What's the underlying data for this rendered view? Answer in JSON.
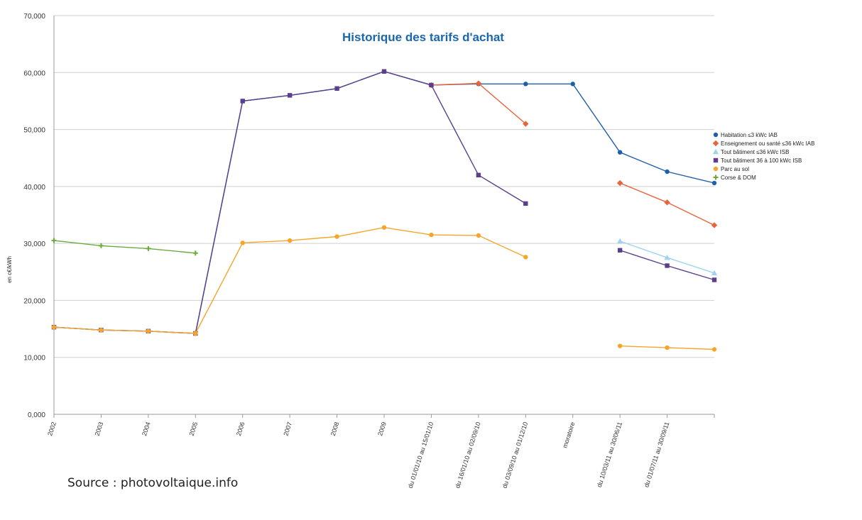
{
  "chart_data": {
    "type": "line",
    "title": "Historique des tarifs d'achat",
    "ylabel": "en c€/kWh",
    "xlabel": "",
    "ylim": [
      0,
      70
    ],
    "y_ticks": [
      "0,000",
      "10,000",
      "20,000",
      "30,000",
      "40,000",
      "50,000",
      "60,000",
      "70,000"
    ],
    "categories": [
      "2002",
      "2003",
      "2004",
      "2005",
      "2006",
      "2007",
      "2008",
      "2009",
      "du 01/01/10 au 15/01/10",
      "du 16/01/10 au 02/09/10",
      "du 03/09/10 au 01/12/10",
      "moratoire",
      "du 10/03/11 au 30/06/11",
      "du 01/07/11 au 30/09/11",
      ""
    ],
    "legend_position": "right",
    "grid": true,
    "series": [
      {
        "name": "Habitation ≤3 kWc IAB",
        "color": "#1f5fa8",
        "marker": "circle",
        "values": [
          15.3,
          14.8,
          14.6,
          14.2,
          55.0,
          56.0,
          57.2,
          60.2,
          57.8,
          58.0,
          58.0,
          58.0,
          46.0,
          42.6,
          40.6
        ]
      },
      {
        "name": "Enseignement ou santé ≤36 kWc IAB",
        "color": "#e8643c",
        "marker": "diamond",
        "values": [
          null,
          null,
          null,
          null,
          null,
          null,
          null,
          null,
          57.8,
          58.1,
          51.0,
          null,
          40.6,
          37.2,
          33.2
        ]
      },
      {
        "name": "Tout bâtiment ≤36 kWc ISB",
        "color": "#9fd3ef",
        "marker": "triangle",
        "values": [
          null,
          null,
          null,
          null,
          null,
          null,
          null,
          null,
          null,
          null,
          null,
          null,
          30.4,
          27.5,
          24.8
        ]
      },
      {
        "name": "Tout bâtiment 36 à 100 kWc ISB",
        "color": "#5b3f8c",
        "marker": "square",
        "values": [
          15.3,
          14.8,
          14.6,
          14.2,
          55.0,
          56.0,
          57.2,
          60.2,
          57.8,
          42.0,
          37.0,
          null,
          28.8,
          26.1,
          23.6
        ]
      },
      {
        "name": "Parc au sol",
        "color": "#f7a52a",
        "marker": "circle",
        "values": [
          15.3,
          14.8,
          14.6,
          14.2,
          30.1,
          30.5,
          31.2,
          32.8,
          31.5,
          31.4,
          27.6,
          null,
          12.0,
          11.7,
          11.4
        ]
      },
      {
        "name": "Corse & DOM",
        "color": "#6aab3c",
        "marker": "plus",
        "values": [
          30.5,
          29.6,
          29.1,
          28.3,
          null,
          null,
          null,
          null,
          null,
          null,
          null,
          null,
          null,
          null,
          null
        ]
      }
    ]
  },
  "source_text": "Source : photovoltaique.info"
}
